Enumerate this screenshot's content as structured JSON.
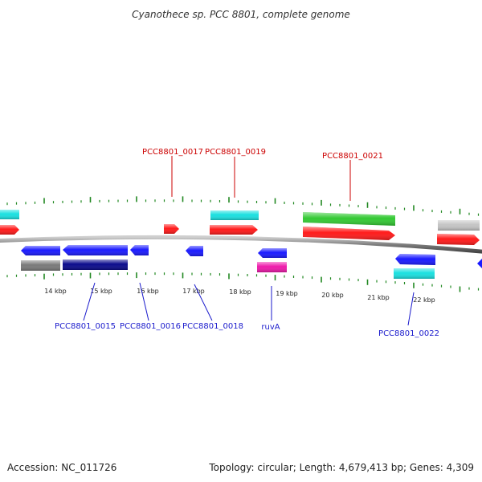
{
  "title": "Cyanothece sp. PCC 8801, complete genome",
  "footer": {
    "accession": "Accession: NC_011726",
    "summary": "Topology: circular; Length: 4,679,413 bp; Genes: 4,309"
  },
  "scale_labels": [
    "14 kbp",
    "15 kbp",
    "16 kbp",
    "17 kbp",
    "18 kbp",
    "19 kbp",
    "20 kbp",
    "21 kbp",
    "22 kbp"
  ],
  "labels": {
    "forward": [
      "PCC8801_0017",
      "PCC8801_0019",
      "PCC8801_0021"
    ],
    "reverse": [
      "PCC8801_0015",
      "PCC8801_0016",
      "PCC8801_0018",
      "ruvA",
      "PCC8801_0022"
    ]
  },
  "colors": {
    "forward_label": "#cc0000",
    "reverse_label": "#1a1acc",
    "backbone": "#8a8a8a",
    "tick": "#228822",
    "cds_forward": "#ff1a1a",
    "cds_reverse": "#1a1aff",
    "gene_cyan": "#19e0e0",
    "gene_green": "#33c933",
    "gene_gray": "#7a7a7a",
    "gene_navy": "#0a0a8c",
    "gene_magenta": "#ee1aaa",
    "gene_lightgray": "#c4c4c4"
  }
}
